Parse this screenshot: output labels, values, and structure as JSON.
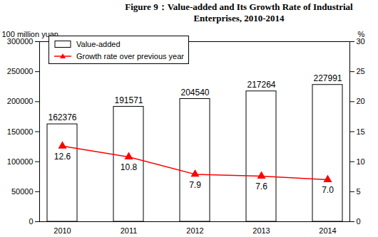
{
  "chart_data": {
    "type": "bar",
    "title": "Figure 9：Value-added and Its Growth Rate of Industrial Enterprises, 2010-2014",
    "categories": [
      "2010",
      "2011",
      "2012",
      "2013",
      "2014"
    ],
    "series": [
      {
        "name": "Value-added",
        "type": "bar",
        "color": "#ffffff",
        "values": [
          162376,
          191571,
          204540,
          217264,
          227991
        ]
      },
      {
        "name": "Growth rate over previous year",
        "type": "line",
        "axis": "y2",
        "color": "#ff0000",
        "marker": "triangle",
        "values": [
          12.6,
          10.8,
          7.9,
          7.6,
          7.0
        ],
        "value_labels": [
          "12.6",
          "10.8",
          "7.9",
          "7.6",
          "7.0"
        ]
      }
    ],
    "y_label": "100 million yuan",
    "y2_label": "%",
    "ylim": [
      0,
      300000
    ],
    "yticks": [
      0,
      50000,
      100000,
      150000,
      200000,
      250000,
      300000
    ],
    "y2lim": [
      0,
      30
    ],
    "y2ticks": [
      0,
      5,
      10,
      15,
      20,
      25,
      30
    ],
    "data_labels": true,
    "legend": "top-left",
    "grid": false
  }
}
